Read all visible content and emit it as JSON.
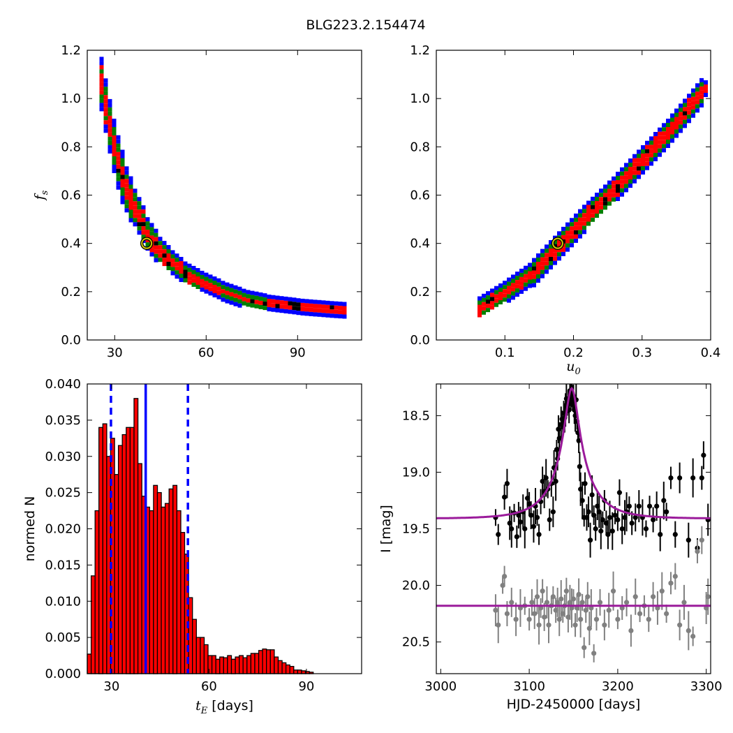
{
  "figure": {
    "title": "BLG223.2.154474"
  },
  "chart_data": [
    {
      "id": "tE_fs",
      "type": "heatmap",
      "title": "",
      "xlabel": "",
      "ylabel": "f_s",
      "xlim": [
        21,
        111
      ],
      "ylim": [
        0.0,
        1.2
      ],
      "xticks": [
        30,
        60,
        90
      ],
      "yticks": [
        0.0,
        0.2,
        0.4,
        0.6,
        0.8,
        1.0,
        1.2
      ],
      "xticklabels": [
        "30",
        "60",
        "90"
      ],
      "yticklabels": [
        "0.0",
        "0.2",
        "0.4",
        "0.6",
        "0.8",
        "1.0",
        "1.2"
      ],
      "confidence_colors": [
        "#0000ff",
        "#008000",
        "#ff0000",
        "#000000"
      ],
      "ridge": [
        [
          25,
          1.06
        ],
        [
          27,
          0.93
        ],
        [
          29,
          0.81
        ],
        [
          31,
          0.71
        ],
        [
          33,
          0.63
        ],
        [
          36,
          0.54
        ],
        [
          40,
          0.44
        ],
        [
          44,
          0.37
        ],
        [
          48,
          0.32
        ],
        [
          52,
          0.28
        ],
        [
          58,
          0.24
        ],
        [
          65,
          0.2
        ],
        [
          72,
          0.17
        ],
        [
          80,
          0.15
        ],
        [
          90,
          0.135
        ],
        [
          100,
          0.125
        ],
        [
          106,
          0.12
        ]
      ],
      "best_fit": {
        "x": 40.5,
        "y": 0.4
      }
    },
    {
      "id": "u0_fs",
      "type": "heatmap",
      "title": "",
      "xlabel": "u_0",
      "ylabel": "",
      "xlim": [
        0.0,
        0.4
      ],
      "ylim": [
        0.0,
        1.2
      ],
      "xticks": [
        0.1,
        0.2,
        0.3,
        0.4
      ],
      "yticks": [
        0.0,
        0.2,
        0.4,
        0.6,
        0.8,
        1.0,
        1.2
      ],
      "xticklabels": [
        "0.1",
        "0.2",
        "0.3",
        "0.4"
      ],
      "yticklabels": [
        "0.0",
        "0.2",
        "0.4",
        "0.6",
        "0.8",
        "1.0",
        "1.2"
      ],
      "confidence_colors": [
        "#0000ff",
        "#008000",
        "#ff0000",
        "#000000"
      ],
      "ridge": [
        [
          0.06,
          0.13
        ],
        [
          0.1,
          0.2
        ],
        [
          0.14,
          0.28
        ],
        [
          0.18,
          0.4
        ],
        [
          0.22,
          0.52
        ],
        [
          0.26,
          0.63
        ],
        [
          0.3,
          0.75
        ],
        [
          0.34,
          0.87
        ],
        [
          0.37,
          0.97
        ],
        [
          0.39,
          1.04
        ]
      ],
      "best_fit": {
        "x": 0.177,
        "y": 0.4
      }
    },
    {
      "id": "tE_hist",
      "type": "bar",
      "title": "",
      "xlabel": "t_E [days]",
      "ylabel": "normed N",
      "xlim": [
        22.5,
        107
      ],
      "ylim": [
        0.0,
        0.04
      ],
      "xticks": [
        30,
        60,
        90
      ],
      "yticks": [
        0.0,
        0.005,
        0.01,
        0.015,
        0.02,
        0.025,
        0.03,
        0.035,
        0.04
      ],
      "xticklabels": [
        "30",
        "60",
        "90"
      ],
      "yticklabels": [
        "0.000",
        "0.005",
        "0.010",
        "0.015",
        "0.020",
        "0.025",
        "0.030",
        "0.035",
        "0.040"
      ],
      "bar_color": "#ff0000",
      "bin_start": 22.5,
      "bin_width": 1.2,
      "values": [
        0.0027,
        0.0135,
        0.0225,
        0.034,
        0.0345,
        0.03,
        0.0325,
        0.0275,
        0.0315,
        0.033,
        0.034,
        0.034,
        0.038,
        0.029,
        0.0245,
        0.023,
        0.0225,
        0.026,
        0.025,
        0.023,
        0.0235,
        0.0255,
        0.026,
        0.0225,
        0.0195,
        0.0165,
        0.0105,
        0.0075,
        0.005,
        0.005,
        0.004,
        0.0025,
        0.0025,
        0.002,
        0.0023,
        0.0022,
        0.0025,
        0.002,
        0.0023,
        0.0025,
        0.0022,
        0.0025,
        0.0028,
        0.0028,
        0.0032,
        0.0034,
        0.0033,
        0.0033,
        0.0023,
        0.0018,
        0.0015,
        0.0012,
        0.001,
        0.0005,
        0.0005,
        0.0004,
        0.0003,
        0.0002
      ],
      "vlines": [
        {
          "x": 29.8,
          "style": "dashed",
          "color": "#0000ff"
        },
        {
          "x": 40.5,
          "style": "solid",
          "color": "#0000ff"
        },
        {
          "x": 53.5,
          "style": "dashed",
          "color": "#0000ff"
        }
      ]
    },
    {
      "id": "lightcurve",
      "type": "scatter",
      "title": "",
      "xlabel": "HJD-2450000 [days]",
      "ylabel": "I [mag]",
      "xlim": [
        2995,
        3305
      ],
      "ylim": [
        20.78,
        18.22
      ],
      "yaxis_inverted": true,
      "xticks": [
        3000,
        3100,
        3200,
        3300
      ],
      "yticks": [
        18.5,
        19.0,
        19.5,
        20.0,
        20.5
      ],
      "xticklabels": [
        "3000",
        "3100",
        "3200",
        "3300"
      ],
      "yticklabels": [
        "18.5",
        "19.0",
        "19.5",
        "20.0",
        "20.5"
      ],
      "model": {
        "t0": 3148,
        "tE": 40.5,
        "u0": 0.177,
        "fs": 0.4,
        "baseline": 19.41,
        "color": "#9b1b9b"
      },
      "residual_baseline": 20.18,
      "series": [
        {
          "color": "#000000",
          "x": [
            3062,
            3065,
            3072,
            3075,
            3078,
            3080,
            3083,
            3086,
            3088,
            3090,
            3093,
            3095,
            3098,
            3100,
            3102,
            3105,
            3107,
            3109,
            3111,
            3113,
            3115,
            3117,
            3119,
            3121,
            3123,
            3125,
            3127,
            3128,
            3130,
            3131,
            3132,
            3133,
            3134,
            3136,
            3137,
            3138,
            3139,
            3140,
            3141,
            3142,
            3143,
            3144,
            3145,
            3146,
            3147,
            3148,
            3149,
            3150,
            3151,
            3152,
            3153,
            3154,
            3155,
            3156,
            3157,
            3158,
            3160,
            3162,
            3163,
            3165,
            3167,
            3169,
            3171,
            3173,
            3175,
            3177,
            3179,
            3181,
            3183,
            3185,
            3187,
            3189,
            3191,
            3194,
            3197,
            3200,
            3202,
            3205,
            3208,
            3210,
            3213,
            3216,
            3220,
            3224,
            3228,
            3232,
            3236,
            3240,
            3244,
            3248,
            3252,
            3255,
            3260,
            3265,
            3270,
            3280,
            3285,
            3290,
            3295,
            3297,
            3302
          ],
          "y": [
            19.4,
            19.55,
            19.22,
            19.1,
            19.45,
            19.5,
            19.36,
            19.57,
            19.38,
            19.44,
            19.35,
            19.5,
            19.23,
            19.28,
            19.38,
            19.48,
            19.3,
            19.4,
            19.55,
            19.26,
            19.08,
            19.17,
            19.05,
            19.15,
            19.42,
            19.1,
            19.35,
            18.96,
            19.08,
            18.8,
            18.88,
            18.62,
            18.7,
            18.58,
            18.53,
            18.6,
            18.48,
            18.52,
            18.45,
            18.35,
            18.42,
            18.38,
            18.45,
            18.28,
            18.3,
            18.25,
            18.37,
            18.33,
            18.45,
            18.5,
            18.36,
            18.55,
            18.65,
            18.72,
            18.95,
            19.15,
            19.25,
            19.4,
            19.1,
            19.4,
            19.35,
            19.6,
            19.2,
            19.38,
            19.5,
            19.3,
            19.35,
            19.52,
            19.42,
            19.25,
            19.45,
            19.55,
            19.4,
            19.52,
            19.38,
            19.42,
            19.18,
            19.5,
            19.4,
            19.35,
            19.3,
            19.45,
            19.4,
            19.3,
            19.4,
            19.5,
            19.3,
            19.42,
            19.3,
            19.55,
            19.25,
            19.35,
            19.05,
            19.55,
            19.05,
            19.6,
            19.05,
            19.67,
            19.05,
            18.85,
            19.42
          ]
        },
        {
          "color": "#808080",
          "x": [
            3062,
            3065,
            3070,
            3072,
            3075,
            3080,
            3085,
            3090,
            3095,
            3100,
            3103,
            3106,
            3109,
            3111,
            3113,
            3115,
            3117,
            3120,
            3122,
            3125,
            3127,
            3130,
            3132,
            3134,
            3136,
            3138,
            3140,
            3142,
            3144,
            3146,
            3148,
            3150,
            3152,
            3154,
            3156,
            3158,
            3160,
            3162,
            3164,
            3166,
            3168,
            3170,
            3173,
            3176,
            3180,
            3185,
            3190,
            3195,
            3200,
            3205,
            3210,
            3215,
            3220,
            3225,
            3230,
            3235,
            3240,
            3245,
            3250,
            3255,
            3260,
            3265,
            3270,
            3275,
            3280,
            3285,
            3290,
            3295,
            3300,
            3302
          ],
          "y": [
            20.22,
            20.35,
            20.0,
            19.92,
            20.25,
            20.15,
            20.3,
            20.2,
            20.18,
            20.3,
            20.15,
            20.25,
            20.1,
            20.35,
            20.2,
            20.05,
            20.28,
            20.15,
            20.35,
            20.18,
            20.1,
            20.22,
            20.15,
            20.3,
            20.12,
            20.25,
            20.18,
            20.05,
            20.28,
            20.15,
            20.2,
            20.12,
            20.35,
            20.2,
            20.08,
            20.3,
            20.15,
            20.55,
            20.22,
            20.1,
            20.38,
            20.2,
            20.6,
            20.3,
            20.15,
            20.35,
            20.22,
            20.05,
            20.3,
            20.2,
            20.15,
            20.4,
            20.1,
            20.25,
            20.18,
            20.3,
            20.1,
            20.2,
            20.05,
            20.25,
            19.98,
            19.92,
            20.35,
            20.15,
            20.4,
            20.45,
            19.7,
            19.6,
            20.2,
            20.1
          ]
        }
      ]
    }
  ]
}
